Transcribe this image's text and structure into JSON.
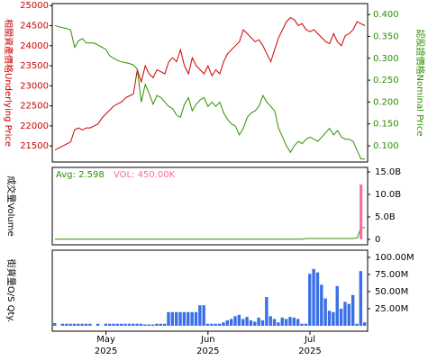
{
  "chart_data": [
    {
      "type": "line",
      "ylabel": "相關資產價格Underlying Price",
      "y2label": "認股證價格Nominal Price",
      "ylim": [
        21100,
        25050
      ],
      "yticks": [
        21500,
        22000,
        22500,
        23000,
        23500,
        24000,
        24500,
        25000
      ],
      "y2lim": [
        0.063,
        0.425
      ],
      "y2ticks": [
        {
          "value": 0.1,
          "label": "0.100"
        },
        {
          "value": 0.15,
          "label": "0.150"
        },
        {
          "value": 0.2,
          "label": "0.200"
        },
        {
          "value": 0.25,
          "label": "0.250"
        },
        {
          "value": 0.3,
          "label": "0.300"
        },
        {
          "value": 0.35,
          "label": "0.350"
        },
        {
          "value": 0.4,
          "label": "0.400"
        }
      ],
      "series": [
        {
          "name": "Underlying Price",
          "color": "#cc0000",
          "values": [
            21400,
            21450,
            21500,
            21550,
            21600,
            21900,
            21950,
            21900,
            21950,
            21950,
            22000,
            22050,
            22200,
            22300,
            22400,
            22500,
            22550,
            22600,
            22700,
            22750,
            22800,
            23400,
            23100,
            23500,
            23300,
            23200,
            23400,
            23350,
            23300,
            23600,
            23700,
            23600,
            23900,
            23500,
            23300,
            23700,
            23500,
            23400,
            23300,
            23500,
            23250,
            23400,
            23300,
            23600,
            23800,
            23900,
            24000,
            24100,
            24400,
            24300,
            24200,
            24100,
            24150,
            24000,
            23800,
            23600,
            23900,
            24200,
            24400,
            24600,
            24700,
            24650,
            24500,
            24550,
            24400,
            24350,
            24400,
            24300,
            24200,
            24100,
            24050,
            24300,
            24100,
            24000,
            24250,
            24300,
            24400,
            24600,
            24550,
            24500
          ]
        },
        {
          "name": "Nominal Price",
          "color": "#2f8f00",
          "axis": "y2",
          "values": [
            0.375,
            0.372,
            0.37,
            0.368,
            0.365,
            0.325,
            0.34,
            0.345,
            0.335,
            0.335,
            0.335,
            0.33,
            0.325,
            0.32,
            0.305,
            0.3,
            0.295,
            0.292,
            0.29,
            0.288,
            0.285,
            0.275,
            0.2,
            0.24,
            0.22,
            0.195,
            0.215,
            0.21,
            0.2,
            0.19,
            0.185,
            0.17,
            0.165,
            0.195,
            0.21,
            0.18,
            0.195,
            0.205,
            0.21,
            0.19,
            0.2,
            0.19,
            0.2,
            0.175,
            0.16,
            0.15,
            0.145,
            0.125,
            0.14,
            0.165,
            0.175,
            0.18,
            0.19,
            0.215,
            0.2,
            0.19,
            0.18,
            0.14,
            0.12,
            0.1,
            0.085,
            0.1,
            0.11,
            0.105,
            0.115,
            0.12,
            0.115,
            0.11,
            0.12,
            0.13,
            0.14,
            0.125,
            0.135,
            0.12,
            0.115,
            0.115,
            0.11,
            0.09,
            0.07,
            0.07
          ]
        }
      ]
    },
    {
      "type": "volume",
      "ylabel": "成交量Volume",
      "avg_label": "Avg: 2.598",
      "vol_label": "VOL: 450.00K",
      "ylim": [
        -1.2,
        16
      ],
      "yticks": [
        0,
        {
          "value": 5,
          "label": "5.0B"
        },
        {
          "value": 10,
          "label": "10.0B"
        },
        {
          "value": 15,
          "label": "15.0B"
        }
      ],
      "series": [
        {
          "name": "Avg",
          "color": "#2f8f00",
          "kind": "line",
          "values": [
            0.05,
            0.05,
            0.05,
            0.05,
            0.05,
            0.05,
            0.05,
            0.05,
            0.05,
            0.05,
            0.05,
            0.05,
            0.05,
            0.05,
            0.05,
            0.05,
            0.05,
            0.05,
            0.05,
            0.05,
            0.05,
            0.05,
            0.05,
            0.05,
            0.05,
            0.05,
            0.05,
            0.05,
            0.05,
            0.05,
            0.05,
            0.05,
            0.05,
            0.05,
            0.05,
            0.05,
            0.05,
            0.05,
            0.05,
            0.05,
            0.05,
            0.05,
            0.05,
            0.05,
            0.05,
            0.05,
            0.05,
            0.05,
            0.05,
            0.05,
            0.05,
            0.05,
            0.05,
            0.05,
            0.05,
            0.05,
            0.05,
            0.05,
            0.05,
            0.05,
            0.05,
            0.05,
            0.05,
            0.05,
            0.2,
            0.2,
            0.2,
            0.2,
            0.2,
            0.2,
            0.2,
            0.2,
            0.2,
            0.2,
            0.2,
            0.2,
            0.2,
            0.3,
            2.6,
            2.6
          ]
        },
        {
          "name": "VOL",
          "color": "#ff6699",
          "kind": "bar",
          "values": [
            0,
            0,
            0,
            0,
            0,
            0,
            0,
            0,
            0,
            0,
            0,
            0,
            0,
            0,
            0,
            0,
            0,
            0,
            0,
            0,
            0,
            0,
            0,
            0,
            0,
            0,
            0,
            0,
            0,
            0,
            0,
            0,
            0,
            0,
            0,
            0,
            0,
            0,
            0,
            0,
            0,
            0,
            0,
            0,
            0,
            0,
            0,
            0,
            0,
            0,
            0,
            0,
            0,
            0,
            0,
            0,
            0,
            0,
            0,
            0,
            0,
            0,
            0,
            0,
            0,
            0,
            0,
            0,
            0,
            0,
            0,
            0,
            0,
            0,
            0,
            0,
            0,
            0,
            12.2,
            0.00045
          ]
        }
      ]
    },
    {
      "type": "bar",
      "ylabel": "街貨量O/S Qty.",
      "ylim": [
        -7.9,
        110.5
      ],
      "yticks": [
        {
          "value": 25,
          "label": "25.00M"
        },
        {
          "value": 50,
          "label": "50.00M"
        },
        {
          "value": 75,
          "label": "75.00M"
        },
        {
          "value": 100,
          "label": "100.00M"
        }
      ],
      "color": "#3a6fe8",
      "values": [
        4,
        0,
        3,
        3,
        3,
        3,
        3,
        3,
        3,
        3,
        0,
        3,
        0,
        3,
        3,
        3,
        3,
        3,
        3,
        3,
        3,
        3,
        3,
        2,
        2,
        2,
        3,
        3,
        3,
        20,
        20,
        20,
        20,
        20,
        20,
        20,
        20,
        30,
        30,
        3,
        3,
        3,
        3,
        5,
        8,
        10,
        14,
        16,
        10,
        13,
        8,
        6,
        12,
        8,
        42,
        14,
        10,
        5,
        12,
        10,
        13,
        12,
        10,
        3,
        3,
        76,
        83,
        78,
        60,
        40,
        22,
        20,
        58,
        25,
        35,
        32,
        45,
        3,
        80,
        5
      ],
      "xticks": [
        {
          "value": 13,
          "label": "May"
        },
        {
          "value": 39,
          "label": "Jun"
        },
        {
          "value": 65,
          "label": "Jul"
        }
      ],
      "xtick_years": [
        "2025",
        "2025",
        "2025"
      ]
    }
  ]
}
